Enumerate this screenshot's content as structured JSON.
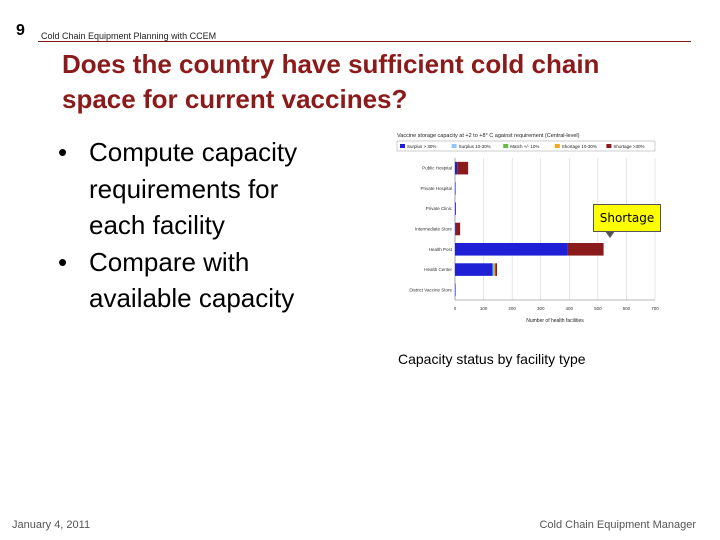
{
  "slide": {
    "number": "9",
    "header": "Cold Chain Equipment Planning with CCEM",
    "title_line1": "Does the country have sufficient cold chain",
    "title_line2": "space for current vaccines?",
    "bullets": [
      {
        "marker": "•",
        "lines": [
          "Compute capacity",
          "requirements for",
          "each facility"
        ]
      },
      {
        "marker": "•",
        "lines": [
          "Compare with",
          "available capacity"
        ]
      }
    ],
    "callout": "Shortage",
    "caption": "Capacity status by facility type",
    "footer_date": "January 4, 2011",
    "footer_right": "Cold Chain Equipment Manager"
  },
  "colors": {
    "title": "#8b1a1a",
    "rule": "#7b1a1a",
    "surplus_high": "#1f1fd6",
    "surplus_low": "#8ec6ff",
    "match": "#66bb44",
    "shortage_low": "#f5a623",
    "shortage_high": "#8b1a1a",
    "callout_bg": "#ffff00"
  },
  "chart_data": {
    "type": "bar",
    "orientation": "horizontal",
    "stacked": true,
    "title": "Vaccine storage capacity at +2 to +8° C against requirement (Central-level)",
    "legend_position": "top",
    "categories": [
      "Public Hospital",
      "Private Hospital",
      "Private Clinic",
      "Intermediate Store",
      "Health Post",
      "Health Center",
      "District Vaccine Store"
    ],
    "series": [
      {
        "name": "Surplus > 30%",
        "color": "#1f1fd6",
        "values": [
          8,
          2,
          3,
          3,
          395,
          132,
          2
        ]
      },
      {
        "name": "Surplus 10-30%",
        "color": "#8ec6ff",
        "values": [
          0,
          0,
          0,
          0,
          0,
          3,
          0
        ]
      },
      {
        "name": "Match +/- 10%",
        "color": "#66bb44",
        "values": [
          0,
          0,
          0,
          0,
          0,
          3,
          0
        ]
      },
      {
        "name": "Shortage 10-30%",
        "color": "#f5a623",
        "values": [
          0,
          0,
          0,
          0,
          0,
          3,
          0
        ]
      },
      {
        "name": "Shortage >30%",
        "color": "#8b1a1a",
        "values": [
          38,
          0,
          0,
          15,
          125,
          6,
          0
        ]
      }
    ],
    "xlabel": "Number of health facilities",
    "ylabel": "",
    "xlim": [
      0,
      700
    ],
    "xticks": [
      0,
      100,
      200,
      300,
      400,
      500,
      600,
      700
    ],
    "grid": true
  }
}
